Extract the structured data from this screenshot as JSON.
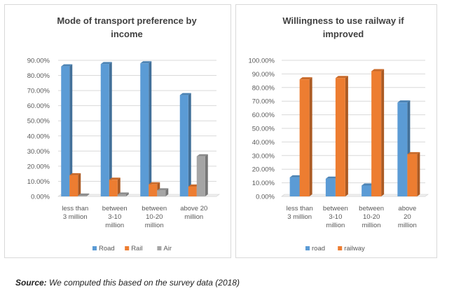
{
  "chart_data": [
    {
      "type": "bar",
      "title_lines": [
        "Mode of transport preference by",
        "income"
      ],
      "categories": [
        [
          "less than",
          "3 million"
        ],
        [
          "between",
          "3-10",
          "million"
        ],
        [
          "between",
          "10-20",
          "million"
        ],
        [
          "above 20",
          "million"
        ]
      ],
      "series": [
        {
          "name": "Road",
          "color": "#5b9bd5",
          "values": [
            0.86,
            0.875,
            0.88,
            0.67
          ]
        },
        {
          "name": "Rail",
          "color": "#ed7d31",
          "values": [
            0.14,
            0.11,
            0.08,
            0.065
          ]
        },
        {
          "name": "Air",
          "color": "#a5a5a5",
          "values": [
            0.005,
            0.012,
            0.04,
            0.265
          ]
        }
      ],
      "ylim": [
        0,
        0.9
      ],
      "yticks": [
        "0.00%",
        "10.00%",
        "20.00%",
        "30.00%",
        "40.00%",
        "50.00%",
        "60.00%",
        "70.00%",
        "80.00%",
        "90.00%"
      ],
      "grid": true,
      "legend_position": "bottom"
    },
    {
      "type": "bar",
      "title_lines": [
        "Willingness to use railway if",
        "improved"
      ],
      "categories": [
        [
          "less than",
          "3 million"
        ],
        [
          "between",
          "3-10",
          "million"
        ],
        [
          "between",
          "10-20",
          "million"
        ],
        [
          "above",
          "20",
          "million"
        ]
      ],
      "series": [
        {
          "name": "road",
          "color": "#5b9bd5",
          "values": [
            0.14,
            0.13,
            0.08,
            0.69
          ]
        },
        {
          "name": "railway",
          "color": "#ed7d31",
          "values": [
            0.86,
            0.87,
            0.92,
            0.31
          ]
        }
      ],
      "ylim": [
        0,
        1.0
      ],
      "yticks": [
        "0.00%",
        "10.00%",
        "20.00%",
        "30.00%",
        "40.00%",
        "50.00%",
        "60.00%",
        "70.00%",
        "80.00%",
        "90.00%",
        "100.00%"
      ],
      "grid": true,
      "legend_position": "bottom"
    }
  ],
  "source": {
    "label": "Source:",
    "text": " We computed this based on the survey data (2018)"
  }
}
